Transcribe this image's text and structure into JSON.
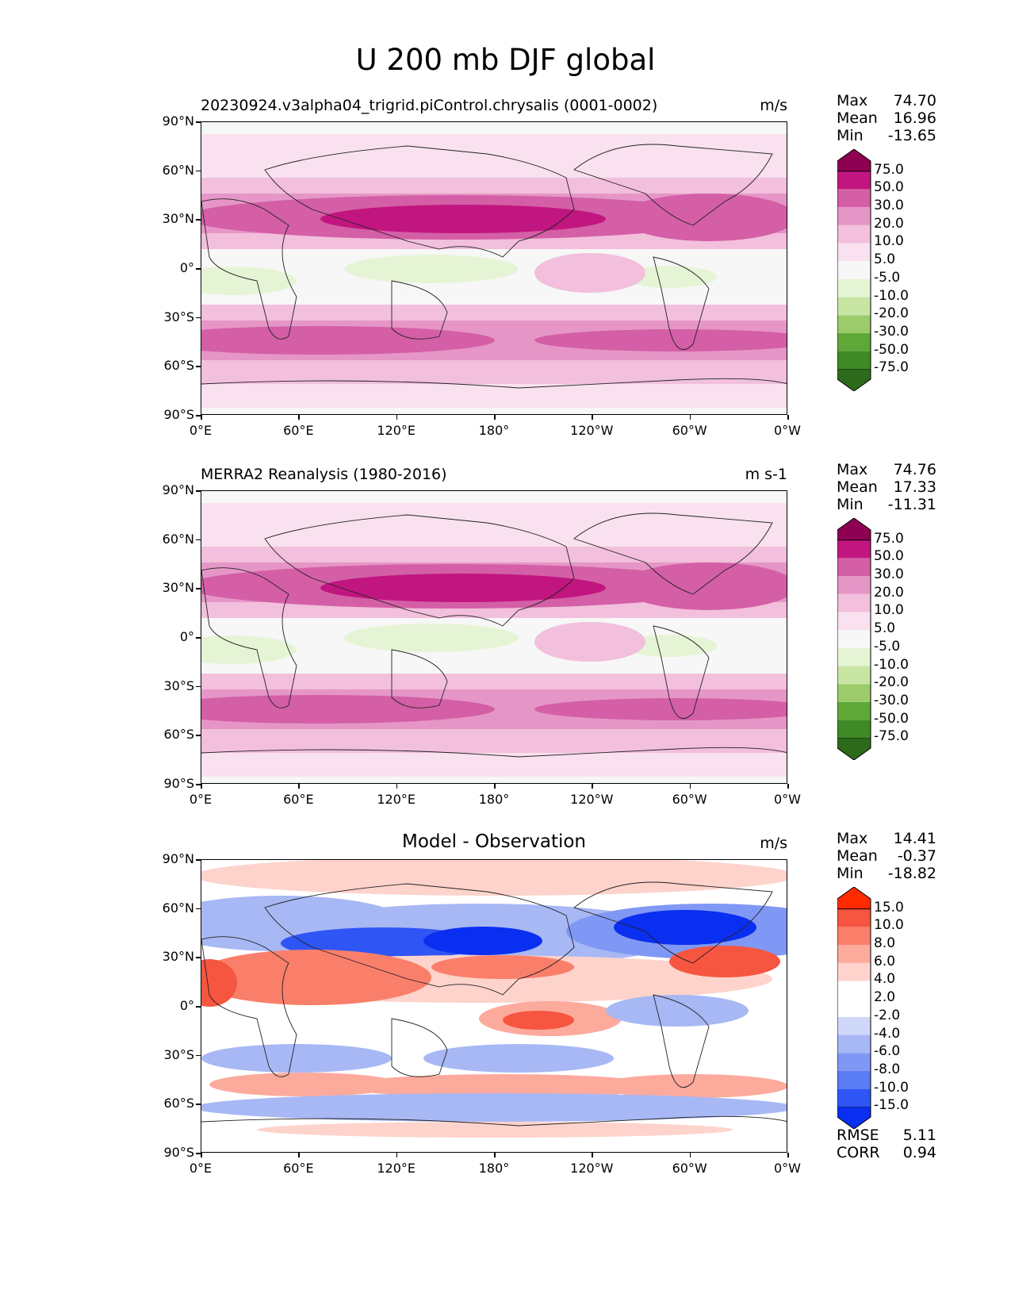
{
  "title": "U 200 mb DJF global",
  "lat_ticks": [
    "90°N",
    "60°N",
    "30°N",
    "0°",
    "30°S",
    "60°S",
    "90°S"
  ],
  "lon_ticks": [
    "0°E",
    "60°E",
    "120°E",
    "180°",
    "120°W",
    "60°W",
    "0°W"
  ],
  "panels": [
    {
      "id": "model",
      "title_left": "20230924.v3alpha04_trigrid.piControl.chrysalis (0001-0002)",
      "title_center": "",
      "units": "m/s",
      "stats": [
        {
          "label": "Max",
          "value": "74.70"
        },
        {
          "label": "Mean",
          "value": "16.96"
        },
        {
          "label": "Min",
          "value": "-13.65"
        }
      ],
      "colorbar": {
        "colors": [
          "#2d6a1c",
          "#3e8a26",
          "#5fa838",
          "#9bcb6a",
          "#c8e5a4",
          "#e6f4d6",
          "#f7f7f7",
          "#f9e1ef",
          "#f2bfdc",
          "#e596c6",
          "#d45fa6",
          "#c1157f",
          "#8e0152"
        ],
        "labels": [
          "75.0",
          "50.0",
          "30.0",
          "20.0",
          "10.0",
          "5.0",
          "-5.0",
          "-10.0",
          "-20.0",
          "-30.0",
          "-50.0",
          "-75.0"
        ]
      }
    },
    {
      "id": "obs",
      "title_left": "MERRA2 Reanalysis (1980-2016)",
      "title_center": "",
      "units": "m s-1",
      "stats": [
        {
          "label": "Max",
          "value": "74.76"
        },
        {
          "label": "Mean",
          "value": "17.33"
        },
        {
          "label": "Min",
          "value": "-11.31"
        }
      ],
      "colorbar": {
        "colors": [
          "#2d6a1c",
          "#3e8a26",
          "#5fa838",
          "#9bcb6a",
          "#c8e5a4",
          "#e6f4d6",
          "#f7f7f7",
          "#f9e1ef",
          "#f2bfdc",
          "#e596c6",
          "#d45fa6",
          "#c1157f",
          "#8e0152"
        ],
        "labels": [
          "75.0",
          "50.0",
          "30.0",
          "20.0",
          "10.0",
          "5.0",
          "-5.0",
          "-10.0",
          "-20.0",
          "-30.0",
          "-50.0",
          "-75.0"
        ]
      }
    },
    {
      "id": "diff",
      "title_left": "",
      "title_center": "Model - Observation",
      "units": "m/s",
      "stats": [
        {
          "label": "Max",
          "value": "14.41"
        },
        {
          "label": "Mean",
          "value": "-0.37"
        },
        {
          "label": "Min",
          "value": "-18.82"
        }
      ],
      "extra_stats": [
        {
          "label": "RMSE",
          "value": "5.11"
        },
        {
          "label": "CORR",
          "value": "0.94"
        }
      ],
      "colorbar": {
        "colors": [
          "#0a2ff0",
          "#2f55f5",
          "#5a7cf5",
          "#8098f5",
          "#a8b8f5",
          "#d0d8fa",
          "#ffffff",
          "#ffffff",
          "#fdd3cc",
          "#fcaa9c",
          "#fa7f6a",
          "#f65540",
          "#ff2a00"
        ],
        "labels": [
          "15.0",
          "10.0",
          "8.0",
          "6.0",
          "4.0",
          "2.0",
          "-2.0",
          "-4.0",
          "-6.0",
          "-8.0",
          "-10.0",
          "-15.0"
        ]
      }
    }
  ]
}
